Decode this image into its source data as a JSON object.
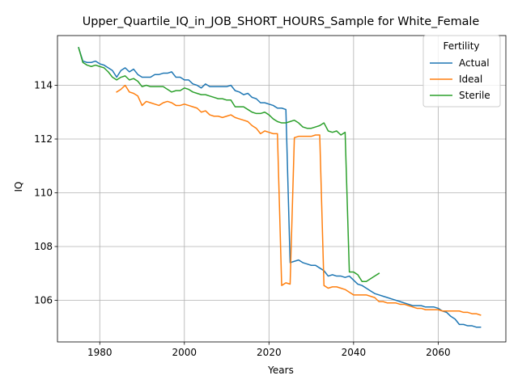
{
  "chart_data": {
    "type": "line",
    "title": "Upper_Quartile_IQ_in_JOB_SHORT_HOURS_Sample for White_Female",
    "xlabel": "Years",
    "ylabel": "IQ",
    "xlim": [
      1970,
      2076
    ],
    "ylim": [
      104.45,
      115.85
    ],
    "xticks": [
      1980,
      2000,
      2020,
      2040,
      2060
    ],
    "yticks": [
      106,
      108,
      110,
      112,
      114
    ],
    "grid": true,
    "legend": {
      "title": "Fertility",
      "placement": "top-right"
    },
    "series": [
      {
        "name": "Actual",
        "color": "#1f77b4",
        "x": [
          1975,
          1976,
          1977,
          1978,
          1979,
          1980,
          1981,
          1982,
          1983,
          1984,
          1985,
          1986,
          1987,
          1988,
          1989,
          1990,
          1991,
          1992,
          1993,
          1994,
          1995,
          1996,
          1997,
          1998,
          1999,
          2000,
          2001,
          2002,
          2003,
          2004,
          2005,
          2006,
          2007,
          2008,
          2009,
          2010,
          2011,
          2012,
          2013,
          2014,
          2015,
          2016,
          2017,
          2018,
          2019,
          2020,
          2021,
          2022,
          2023,
          2024,
          2025,
          2026,
          2027,
          2028,
          2029,
          2030,
          2031,
          2032,
          2033,
          2034,
          2035,
          2036,
          2037,
          2038,
          2039,
          2040,
          2041,
          2042,
          2043,
          2044,
          2045,
          2046,
          2047,
          2048,
          2049,
          2050,
          2051,
          2052,
          2053,
          2054,
          2055,
          2056,
          2057,
          2058,
          2059,
          2060,
          2061,
          2062,
          2063,
          2064,
          2065,
          2066,
          2067,
          2068,
          2069,
          2070
        ],
        "y": [
          115.4,
          114.9,
          114.85,
          114.85,
          114.9,
          114.8,
          114.75,
          114.65,
          114.55,
          114.3,
          114.55,
          114.65,
          114.5,
          114.6,
          114.4,
          114.3,
          114.3,
          114.3,
          114.4,
          114.4,
          114.45,
          114.45,
          114.5,
          114.3,
          114.3,
          114.2,
          114.2,
          114.05,
          114.0,
          113.9,
          114.05,
          113.95,
          113.95,
          113.95,
          113.95,
          113.95,
          114.0,
          113.8,
          113.75,
          113.65,
          113.7,
          113.55,
          113.5,
          113.35,
          113.35,
          113.3,
          113.25,
          113.15,
          113.15,
          113.1,
          107.4,
          107.45,
          107.5,
          107.4,
          107.35,
          107.3,
          107.3,
          107.2,
          107.1,
          106.9,
          106.95,
          106.9,
          106.9,
          106.85,
          106.9,
          106.75,
          106.6,
          106.55,
          106.45,
          106.35,
          106.25,
          106.2,
          106.15,
          106.1,
          106.05,
          106.0,
          105.95,
          105.9,
          105.85,
          105.8,
          105.8,
          105.8,
          105.75,
          105.75,
          105.75,
          105.7,
          105.6,
          105.55,
          105.4,
          105.3,
          105.1,
          105.1,
          105.05,
          105.05,
          105.0,
          105.0
        ]
      },
      {
        "name": "Ideal",
        "color": "#ff7f0e",
        "x": [
          1984,
          1985,
          1986,
          1987,
          1988,
          1989,
          1990,
          1991,
          1992,
          1993,
          1994,
          1995,
          1996,
          1997,
          1998,
          1999,
          2000,
          2001,
          2002,
          2003,
          2004,
          2005,
          2006,
          2007,
          2008,
          2009,
          2010,
          2011,
          2012,
          2013,
          2014,
          2015,
          2016,
          2017,
          2018,
          2019,
          2020,
          2021,
          2022,
          2023,
          2024,
          2025,
          2026,
          2027,
          2028,
          2029,
          2030,
          2031,
          2032,
          2033,
          2034,
          2035,
          2036,
          2037,
          2038,
          2039,
          2040,
          2041,
          2042,
          2043,
          2044,
          2045,
          2046,
          2047,
          2048,
          2049,
          2050,
          2051,
          2052,
          2053,
          2054,
          2055,
          2056,
          2057,
          2058,
          2059,
          2060,
          2061,
          2062,
          2063,
          2064,
          2065,
          2066,
          2067,
          2068,
          2069,
          2070
        ],
        "y": [
          113.75,
          113.85,
          114.0,
          113.75,
          113.7,
          113.6,
          113.25,
          113.4,
          113.35,
          113.3,
          113.25,
          113.35,
          113.4,
          113.35,
          113.25,
          113.25,
          113.3,
          113.25,
          113.2,
          113.15,
          113.0,
          113.05,
          112.9,
          112.85,
          112.85,
          112.8,
          112.85,
          112.9,
          112.8,
          112.75,
          112.7,
          112.65,
          112.5,
          112.4,
          112.2,
          112.3,
          112.25,
          112.2,
          112.2,
          106.55,
          106.65,
          106.6,
          112.05,
          112.1,
          112.1,
          112.1,
          112.1,
          112.15,
          112.15,
          106.55,
          106.45,
          106.5,
          106.5,
          106.45,
          106.4,
          106.3,
          106.2,
          106.2,
          106.2,
          106.2,
          106.15,
          106.1,
          105.95,
          105.95,
          105.9,
          105.9,
          105.9,
          105.85,
          105.85,
          105.8,
          105.75,
          105.7,
          105.7,
          105.65,
          105.65,
          105.65,
          105.65,
          105.6,
          105.6,
          105.6,
          105.6,
          105.6,
          105.55,
          105.55,
          105.5,
          105.5,
          105.45
        ]
      },
      {
        "name": "Sterile",
        "color": "#2ca02c",
        "x": [
          1975,
          1976,
          1977,
          1978,
          1979,
          1980,
          1981,
          1982,
          1983,
          1984,
          1985,
          1986,
          1987,
          1988,
          1989,
          1990,
          1991,
          1992,
          1993,
          1994,
          1995,
          1996,
          1997,
          1998,
          1999,
          2000,
          2001,
          2002,
          2003,
          2004,
          2005,
          2006,
          2007,
          2008,
          2009,
          2010,
          2011,
          2012,
          2013,
          2014,
          2015,
          2016,
          2017,
          2018,
          2019,
          2020,
          2021,
          2022,
          2023,
          2024,
          2025,
          2026,
          2027,
          2028,
          2029,
          2030,
          2031,
          2032,
          2033,
          2034,
          2035,
          2036,
          2037,
          2038,
          2039,
          2040,
          2041,
          2042,
          2043,
          2044,
          2045,
          2046
        ],
        "y": [
          115.4,
          114.85,
          114.75,
          114.7,
          114.75,
          114.7,
          114.65,
          114.5,
          114.3,
          114.2,
          114.3,
          114.35,
          114.2,
          114.25,
          114.15,
          113.95,
          114.0,
          113.95,
          113.95,
          113.95,
          113.95,
          113.85,
          113.75,
          113.8,
          113.8,
          113.9,
          113.85,
          113.75,
          113.7,
          113.65,
          113.65,
          113.6,
          113.55,
          113.5,
          113.5,
          113.45,
          113.45,
          113.2,
          113.2,
          113.2,
          113.1,
          113.0,
          112.95,
          112.95,
          113.0,
          112.9,
          112.75,
          112.65,
          112.6,
          112.6,
          112.65,
          112.7,
          112.6,
          112.45,
          112.4,
          112.4,
          112.45,
          112.5,
          112.6,
          112.3,
          112.25,
          112.3,
          112.15,
          112.25,
          107.05,
          107.05,
          106.95,
          106.7,
          106.7,
          106.8,
          106.9,
          107.0
        ]
      }
    ]
  }
}
